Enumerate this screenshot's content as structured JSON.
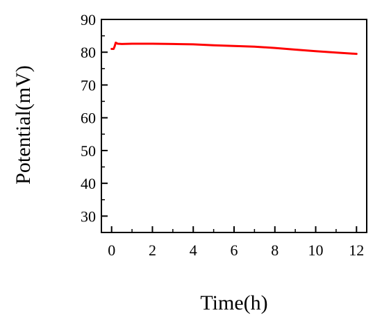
{
  "chart_data": {
    "type": "line",
    "title": "",
    "xlabel": "Time(h)",
    "ylabel": "Potential(mV)",
    "xlim": [
      -0.5,
      12.5
    ],
    "ylim": [
      25,
      90
    ],
    "x_ticks": [
      0,
      2,
      4,
      6,
      8,
      10,
      12
    ],
    "y_ticks": [
      30,
      40,
      50,
      60,
      70,
      80,
      90
    ],
    "grid": false,
    "legend": "none",
    "series": [
      {
        "color": "#ff0000",
        "x": [
          0,
          0.1,
          0.15,
          0.2,
          0.3,
          0.5,
          1,
          2,
          3,
          4,
          5,
          6,
          7,
          8,
          9,
          10,
          11,
          12
        ],
        "y": [
          81,
          81,
          81.8,
          82.9,
          82.6,
          82.5,
          82.6,
          82.6,
          82.5,
          82.4,
          82.1,
          81.9,
          81.7,
          81.3,
          80.8,
          80.3,
          79.9,
          79.5
        ]
      }
    ]
  }
}
